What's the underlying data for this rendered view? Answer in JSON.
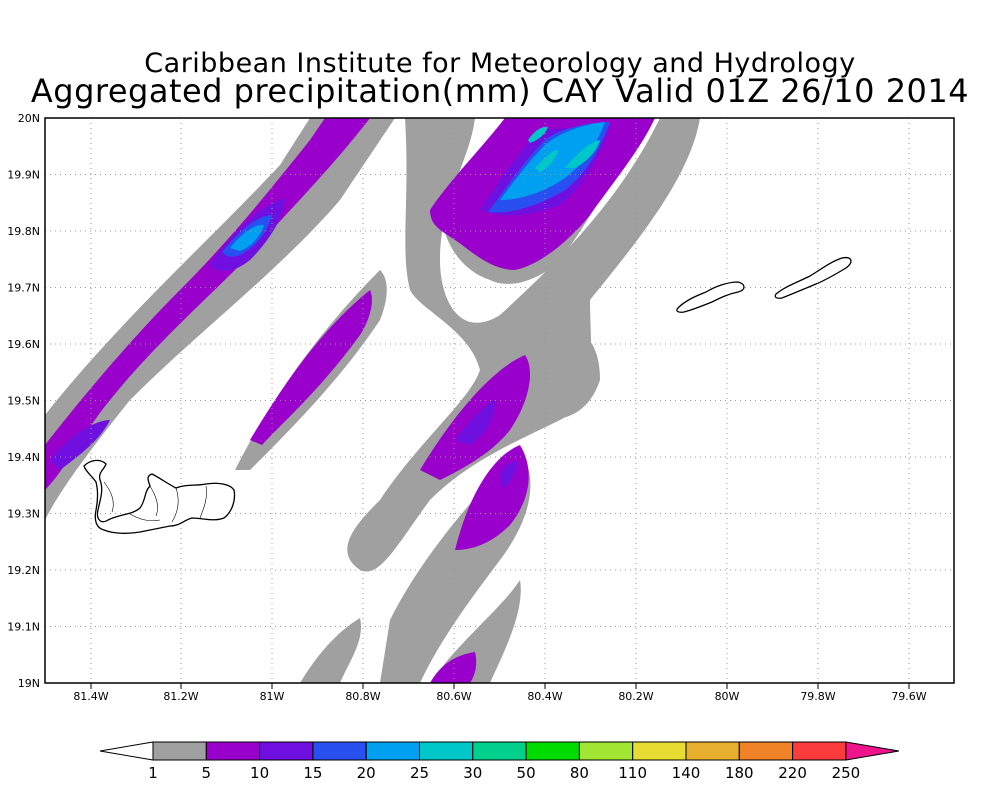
{
  "header": {
    "line1": "Caribbean Institute for Meteorology and Hydrology",
    "line2": "Aggregated precipitation(mm) CAY Valid 01Z 26/10 2014"
  },
  "map": {
    "lon_range": [
      -81.5,
      -79.5
    ],
    "lat_range": [
      19.0,
      20.0
    ],
    "grid": "dotted",
    "lon_ticks": [
      "81.4W",
      "81.2W",
      "81W",
      "80.8W",
      "80.6W",
      "80.4W",
      "80.2W",
      "80W",
      "79.8W",
      "79.6W"
    ],
    "lat_ticks": [
      "19N",
      "19.1N",
      "19.2N",
      "19.3N",
      "19.4N",
      "19.5N",
      "19.6N",
      "19.7N",
      "19.8N",
      "19.9N",
      "20N"
    ],
    "islands": [
      "grand-cayman",
      "little-cayman",
      "cayman-brac"
    ]
  },
  "colorbar": {
    "labels": [
      "1",
      "5",
      "10",
      "15",
      "20",
      "25",
      "30",
      "50",
      "80",
      "110",
      "140",
      "180",
      "220",
      "250"
    ],
    "colors": [
      "#a0a0a0",
      "#9a00cc",
      "#7010e0",
      "#2850f0",
      "#00a0f0",
      "#00c8c8",
      "#00d08c",
      "#00dc00",
      "#a0e632",
      "#e6dc32",
      "#e6af2d",
      "#f08228",
      "#fa3c3c"
    ],
    "under_color": "#ffffff",
    "over_color": "#f0148c"
  },
  "legend_colors": {
    "gray": "#a0a0a0",
    "purple": "#9a00cc",
    "violet": "#7010e0",
    "blue": "#2850f0",
    "sky": "#00a0f0",
    "cyan": "#00c8c8"
  }
}
